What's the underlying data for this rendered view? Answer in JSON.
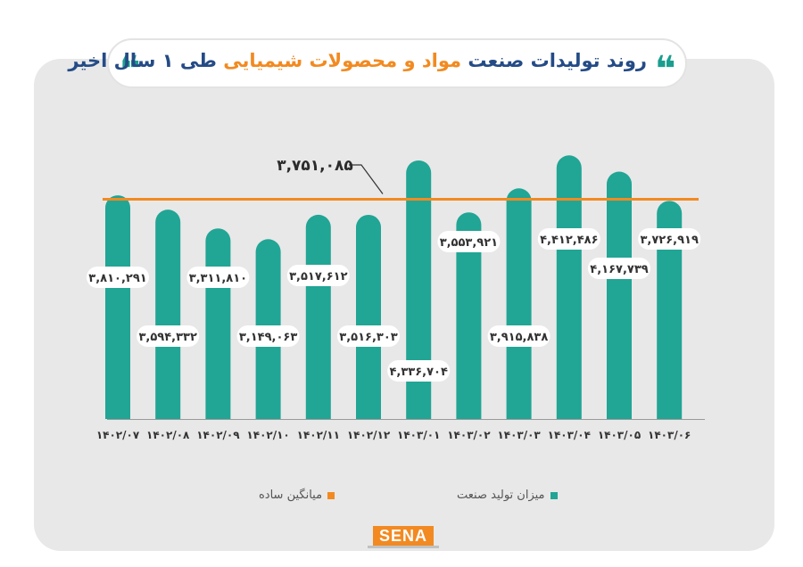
{
  "title": {
    "part1": "روند تولیدات صنعت",
    "part2": "مواد و محصولات شیمیایی",
    "part3": "طی ۱ سال اخیر"
  },
  "quote_glyph": "❝",
  "colors": {
    "bar": "#21a595",
    "average": "#f28a21",
    "title": "#244b86",
    "panel": "#e8e8e8"
  },
  "legend": {
    "production": "میزان تولید صنعت",
    "average": "میانگین ساده"
  },
  "logo": {
    "text": "SENA"
  },
  "chart_data": {
    "type": "bar",
    "categories": [
      "۱۴۰۲/۰۷",
      "۱۴۰۲/۰۸",
      "۱۴۰۲/۰۹",
      "۱۴۰۲/۱۰",
      "۱۴۰۲/۱۱",
      "۱۴۰۲/۱۲",
      "۱۴۰۳/۰۱",
      "۱۴۰۳/۰۲",
      "۱۴۰۳/۰۳",
      "۱۴۰۳/۰۴",
      "۱۴۰۳/۰۵",
      "۱۴۰۳/۰۶"
    ],
    "values": [
      3810291,
      3594332,
      3311810,
      3149063,
      3517612,
      3516303,
      4336704,
      3553921,
      3915838,
      4412486,
      4167739,
      3726919
    ],
    "value_labels": [
      "۳,۸۱۰,۲۹۱",
      "۳,۵۹۴,۳۳۲",
      "۳,۳۱۱,۸۱۰",
      "۳,۱۴۹,۰۶۳",
      "۳,۵۱۷,۶۱۲",
      "۳,۵۱۶,۳۰۳",
      "۴,۳۳۶,۷۰۴",
      "۳,۵۵۳,۹۲۱",
      "۳,۹۱۵,۸۳۸",
      "۴,۴۱۲,۴۸۶",
      "۴,۱۶۷,۷۳۹",
      "۳,۷۲۶,۹۱۹"
    ],
    "average": 3751085,
    "average_label": "۳,۷۵۱,۰۸۵",
    "series": [
      {
        "name": "میزان تولید صنعت",
        "values": [
          3810291,
          3594332,
          3311810,
          3149063,
          3517612,
          3516303,
          4336704,
          3553921,
          3915838,
          4412486,
          4167739,
          3726919
        ]
      }
    ],
    "grid": false,
    "legend_position": "bottom"
  }
}
